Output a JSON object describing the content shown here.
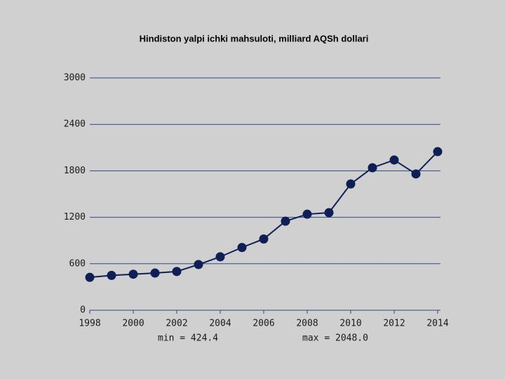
{
  "chart_data": {
    "type": "line",
    "title": "Hindiston yalpi ichki mahsuloti, milliard AQSh dollari",
    "x": [
      1998,
      1999,
      2000,
      2001,
      2002,
      2003,
      2004,
      2005,
      2006,
      2007,
      2008,
      2009,
      2010,
      2011,
      2012,
      2013,
      2014
    ],
    "series": [
      {
        "color": "#0f1f55",
        "values": [
          424.4,
          450,
          465,
          480,
          500,
          590,
          690,
          810,
          920,
          1150,
          1240,
          1260,
          1630,
          1840,
          1940,
          1760,
          2048.0
        ]
      }
    ],
    "xlim": [
      1998,
      2014
    ],
    "xticks": [
      1998,
      2000,
      2002,
      2004,
      2006,
      2008,
      2010,
      2012,
      2014
    ],
    "ylim": [
      0,
      3000
    ],
    "yticks": [
      0,
      600,
      1200,
      1800,
      2400,
      3000
    ],
    "grid": true,
    "annotations": [
      "min = 424.4",
      "max = 2048.0"
    ]
  }
}
